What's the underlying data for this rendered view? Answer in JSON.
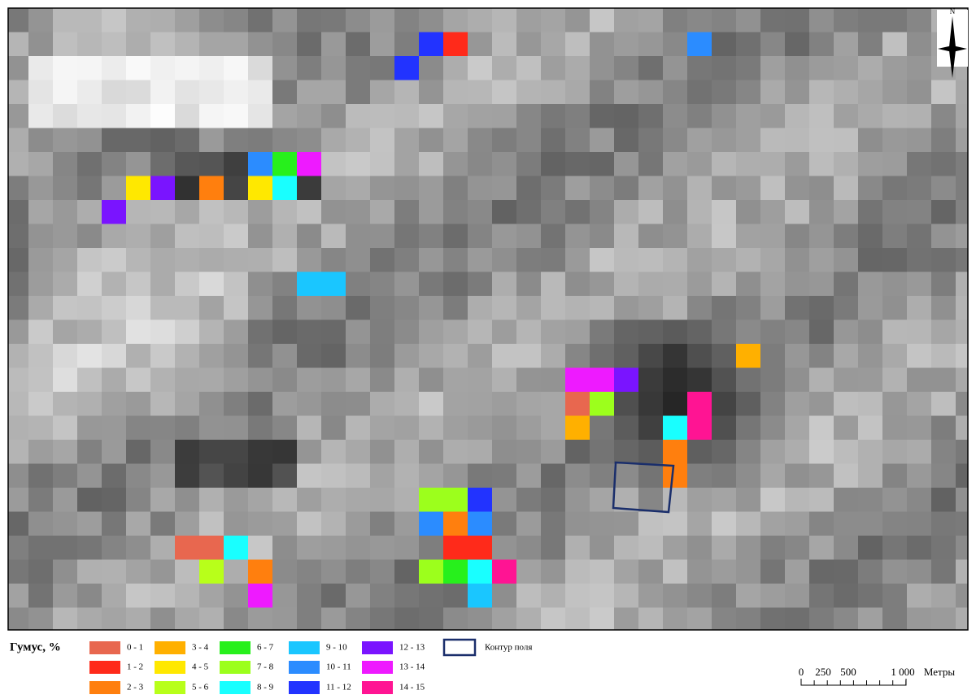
{
  "legend": {
    "title": "Гумус, %",
    "items": [
      {
        "label": "0 - 1",
        "color": "#e8674f"
      },
      {
        "label": "1 - 2",
        "color": "#ff2a1a"
      },
      {
        "label": "2 - 3",
        "color": "#ff7f0e"
      },
      {
        "label": "3 - 4",
        "color": "#ffb000"
      },
      {
        "label": "4 - 5",
        "color": "#ffe800"
      },
      {
        "label": "5 - 6",
        "color": "#b8ff1a"
      },
      {
        "label": "6 - 7",
        "color": "#27f01c"
      },
      {
        "label": "7 - 8",
        "color": "#9cff1c"
      },
      {
        "label": "8 - 9",
        "color": "#19ffff"
      },
      {
        "label": "9 - 10",
        "color": "#1ac6ff"
      },
      {
        "label": "10 - 11",
        "color": "#2b8cff"
      },
      {
        "label": "11 - 12",
        "color": "#2233ff"
      },
      {
        "label": "12 - 13",
        "color": "#7a14ff"
      },
      {
        "label": "13 - 14",
        "color": "#ee1aff"
      },
      {
        "label": "14 - 15",
        "color": "#ff1493"
      }
    ],
    "contour_label": "Контур поля"
  },
  "scale": {
    "labels": [
      "0",
      "250",
      "500",
      "1 000",
      "Метры"
    ]
  },
  "north": "N"
}
